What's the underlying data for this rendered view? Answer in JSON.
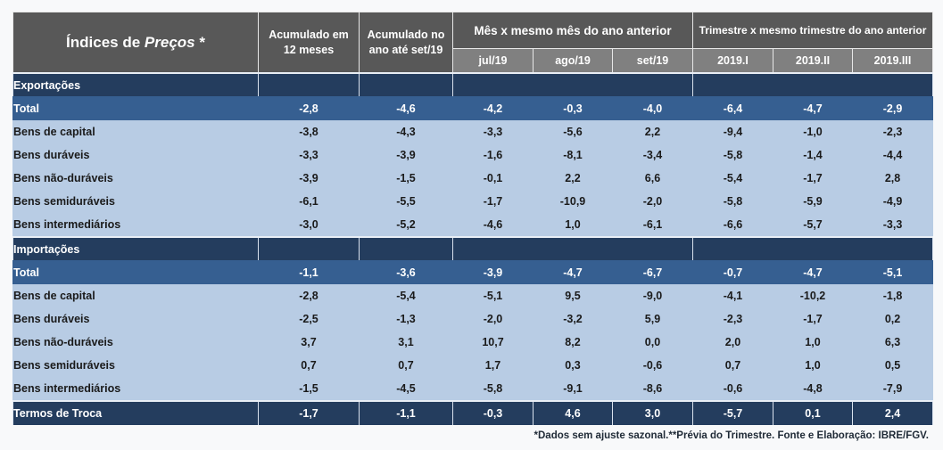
{
  "header": {
    "title_main": "Índices de ",
    "title_italic": "Preços",
    "title_suffix": " *",
    "col_acum12": "Acumulado em 12 meses",
    "col_acumano": "Acumulado no ano até set/19",
    "group_month": "Mês x mesmo mês do ano anterior",
    "group_quarter": "Trimestre x mesmo trimestre do ano anterior",
    "months": [
      "jul/19",
      "ago/19",
      "set/19"
    ],
    "quarters": [
      "2019.I",
      "2019.II",
      "2019.III"
    ]
  },
  "sections": [
    {
      "label": "Exportações",
      "total": {
        "label": "Total",
        "values": [
          "-2,8",
          "-4,6",
          "-4,2",
          "-0,3",
          "-4,0",
          "-6,4",
          "-4,7",
          "-2,9"
        ]
      },
      "items": [
        {
          "label": "Bens de capital",
          "values": [
            "-3,8",
            "-4,3",
            "-3,3",
            "-5,6",
            "2,2",
            "-9,4",
            "-1,0",
            "-2,3"
          ]
        },
        {
          "label": "Bens duráveis",
          "values": [
            "-3,3",
            "-3,9",
            "-1,6",
            "-8,1",
            "-3,4",
            "-5,8",
            "-1,4",
            "-4,4"
          ]
        },
        {
          "label": "Bens não-duráveis",
          "values": [
            "-3,9",
            "-1,5",
            "-0,1",
            "2,2",
            "6,6",
            "-5,4",
            "-1,7",
            "2,8"
          ]
        },
        {
          "label": "Bens semiduráveis",
          "values": [
            "-6,1",
            "-5,5",
            "-1,7",
            "-10,9",
            "-2,0",
            "-5,8",
            "-5,9",
            "-4,9"
          ]
        },
        {
          "label": "Bens intermediários",
          "values": [
            "-3,0",
            "-5,2",
            "-4,6",
            "1,0",
            "-6,1",
            "-6,6",
            "-5,7",
            "-3,3"
          ]
        }
      ]
    },
    {
      "label": "Importações",
      "total": {
        "label": "Total",
        "values": [
          "-1,1",
          "-3,6",
          "-3,9",
          "-4,7",
          "-6,7",
          "-0,7",
          "-4,7",
          "-5,1"
        ]
      },
      "items": [
        {
          "label": "Bens de capital",
          "values": [
            "-2,8",
            "-5,4",
            "-5,1",
            "9,5",
            "-9,0",
            "-4,1",
            "-10,2",
            "-1,8"
          ]
        },
        {
          "label": "Bens duráveis",
          "values": [
            "-2,5",
            "-1,3",
            "-2,0",
            "-3,2",
            "5,9",
            "-2,3",
            "-1,7",
            "0,2"
          ]
        },
        {
          "label": "Bens não-duráveis",
          "values": [
            "3,7",
            "3,1",
            "10,7",
            "8,2",
            "0,0",
            "2,0",
            "1,0",
            "6,3"
          ]
        },
        {
          "label": "Bens semiduráveis",
          "values": [
            "0,7",
            "0,7",
            "1,7",
            "0,3",
            "-0,6",
            "0,7",
            "1,0",
            "0,5"
          ]
        },
        {
          "label": "Bens intermediários",
          "values": [
            "-1,5",
            "-4,5",
            "-5,8",
            "-9,1",
            "-8,6",
            "-0,6",
            "-4,8",
            "-7,9"
          ]
        }
      ]
    }
  ],
  "terms_of_trade": {
    "label": "Termos de Troca",
    "values": [
      "-1,7",
      "-1,1",
      "-0,3",
      "4,6",
      "3,0",
      "-5,7",
      "0,1",
      "2,4"
    ]
  },
  "footnote": "*Dados sem ajuste sazonal.**Prévia do Trimestre. Fonte e Elaboração: IBRE/FGV.",
  "colors": {
    "header_dark": "#585858",
    "header_light": "#808080",
    "section_navy": "#243d5e",
    "total_blue": "#365f91",
    "item_lightblue": "#b8cce4"
  }
}
